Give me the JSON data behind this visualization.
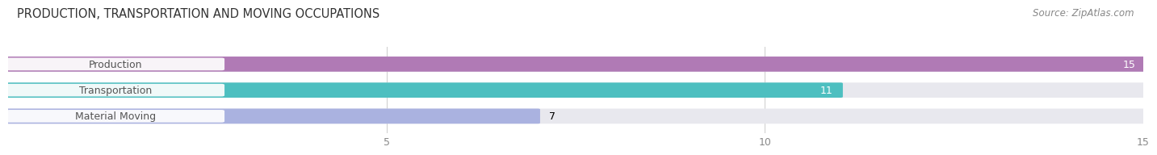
{
  "title": "PRODUCTION, TRANSPORTATION AND MOVING OCCUPATIONS",
  "source": "Source: ZipAtlas.com",
  "categories": [
    "Production",
    "Transportation",
    "Material Moving"
  ],
  "values": [
    15,
    11,
    7
  ],
  "bar_colors": [
    "#b07ab5",
    "#4dbfc0",
    "#aab2e0"
  ],
  "bar_bg_color": "#e8e8ee",
  "value_label_colors": [
    "white",
    "white",
    "black"
  ],
  "value_label_inside": [
    true,
    true,
    false
  ],
  "xlim": [
    0,
    15
  ],
  "xticks": [
    5,
    10,
    15
  ],
  "title_fontsize": 10.5,
  "source_fontsize": 8.5,
  "label_fontsize": 9,
  "value_fontsize": 9,
  "tick_fontsize": 9,
  "bar_height": 0.52,
  "figsize": [
    14.06,
    1.97
  ],
  "dpi": 100
}
